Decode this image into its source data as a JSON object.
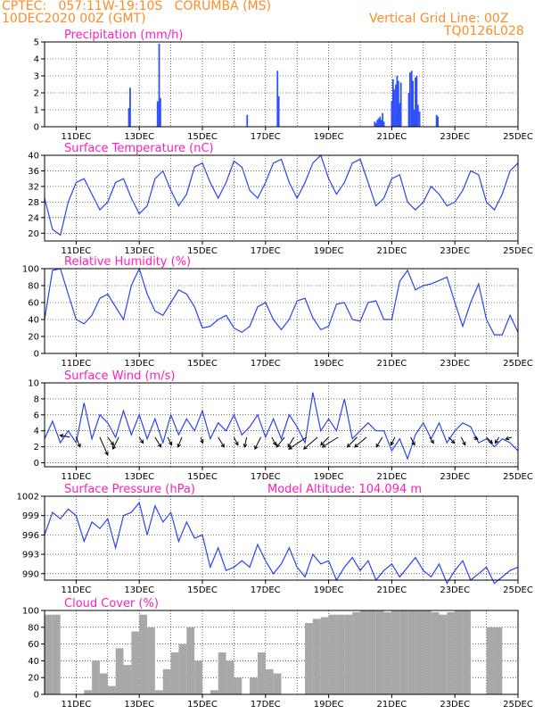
{
  "header": {
    "line1": "CPTEC:   057:11W-19:10S   CORUMBA (MS)",
    "line2_left": "10DEC2020 00Z (GMT)",
    "line2_right": "Vertical Grid Line: 00Z",
    "line3_right": "TQ0126L028"
  },
  "x_axis": {
    "tick_labels": [
      "11DEC",
      "13DEC",
      "15DEC",
      "17DEC",
      "19DEC",
      "21DEC",
      "23DEC",
      "25DEC"
    ],
    "tick_days": [
      1,
      3,
      5,
      7,
      9,
      11,
      13,
      15
    ],
    "range_days": [
      0,
      15
    ]
  },
  "colors": {
    "header": "#ff8c28",
    "title": "#ff1dbf",
    "line": "#2a44f0",
    "bar": "#3050f8",
    "cloud": "#a8a8a8",
    "grid": "#000000",
    "arrow": "#000000"
  },
  "chart_data": [
    {
      "type": "bar",
      "title": "Precipitation (mm/h)",
      "ylim": [
        0,
        5
      ],
      "yticks": [
        "0",
        "1",
        "2",
        "3",
        "4",
        "5"
      ],
      "x": [
        2.67,
        2.71,
        3.58,
        3.63,
        3.67,
        6.42,
        7.38,
        7.42,
        10.46,
        10.5,
        10.54,
        10.58,
        10.63,
        10.67,
        10.71,
        10.75,
        11.0,
        11.04,
        11.08,
        11.13,
        11.17,
        11.21,
        11.25,
        11.29,
        11.54,
        11.58,
        11.63,
        11.67,
        11.71,
        11.75,
        11.79,
        11.83,
        11.88,
        12.42,
        12.46
      ],
      "values": [
        1.1,
        2.3,
        1.5,
        4.9,
        1.7,
        0.7,
        3.3,
        1.8,
        0.3,
        0.2,
        0.4,
        0.5,
        0.6,
        0.4,
        0.8,
        0.3,
        1.5,
        2.8,
        2.2,
        2.5,
        3.0,
        2.7,
        1.4,
        2.6,
        2.0,
        3.2,
        3.3,
        2.7,
        1.0,
        2.9,
        3.0,
        1.3,
        0.9,
        0.7,
        0.6
      ]
    },
    {
      "type": "line",
      "title": "Surface Temperature (nC)",
      "ylim": [
        18,
        40
      ],
      "yticks": [
        "20",
        "24",
        "28",
        "32",
        "36",
        "40"
      ],
      "x": [
        0,
        0.25,
        0.5,
        0.75,
        1.0,
        1.25,
        1.5,
        1.75,
        2.0,
        2.25,
        2.5,
        2.75,
        3.0,
        3.25,
        3.5,
        3.75,
        4.0,
        4.25,
        4.5,
        4.75,
        5.0,
        5.25,
        5.5,
        5.75,
        6.0,
        6.25,
        6.5,
        6.75,
        7.0,
        7.25,
        7.5,
        7.75,
        8.0,
        8.25,
        8.5,
        8.75,
        9.0,
        9.25,
        9.5,
        9.75,
        10.0,
        10.25,
        10.5,
        10.75,
        11.0,
        11.25,
        11.5,
        11.75,
        12.0,
        12.25,
        12.5,
        12.75,
        13.0,
        13.25,
        13.5,
        13.75,
        14.0,
        14.25,
        14.5,
        14.75,
        15.0
      ],
      "values": [
        29,
        21,
        19.5,
        28,
        33,
        34,
        30,
        26,
        28,
        33,
        34,
        29,
        25,
        27,
        34,
        36,
        31,
        27,
        30,
        37,
        38,
        33,
        29,
        33,
        38.5,
        37,
        31,
        29,
        33,
        38,
        39,
        33,
        29,
        33,
        38,
        40,
        34,
        30,
        33,
        38,
        39,
        33,
        27,
        29,
        34,
        35,
        28,
        26,
        28,
        32,
        30,
        27,
        28,
        31,
        36,
        35,
        28,
        26,
        30,
        36,
        38
      ]
    },
    {
      "type": "line",
      "title": "Relative Humidity (%)",
      "ylim": [
        0,
        100
      ],
      "yticks": [
        "0",
        "20",
        "40",
        "60",
        "80",
        "100"
      ],
      "x": [
        0,
        0.25,
        0.5,
        0.75,
        1.0,
        1.25,
        1.5,
        1.75,
        2.0,
        2.25,
        2.5,
        2.75,
        3.0,
        3.25,
        3.5,
        3.75,
        4.0,
        4.25,
        4.5,
        4.75,
        5.0,
        5.25,
        5.5,
        5.75,
        6.0,
        6.25,
        6.5,
        6.75,
        7.0,
        7.25,
        7.5,
        7.75,
        8.0,
        8.25,
        8.5,
        8.75,
        9.0,
        9.25,
        9.5,
        9.75,
        10.0,
        10.25,
        10.5,
        10.75,
        11.0,
        11.25,
        11.5,
        11.75,
        12.0,
        12.25,
        12.5,
        12.75,
        13.0,
        13.25,
        13.5,
        13.75,
        14.0,
        14.25,
        14.5,
        14.75,
        15.0
      ],
      "values": [
        40,
        98,
        100,
        70,
        40,
        35,
        45,
        65,
        70,
        55,
        40,
        80,
        100,
        70,
        50,
        45,
        60,
        75,
        70,
        55,
        30,
        32,
        40,
        45,
        30,
        25,
        32,
        55,
        60,
        40,
        28,
        40,
        62,
        65,
        42,
        28,
        32,
        58,
        60,
        40,
        38,
        60,
        62,
        40,
        40,
        85,
        98,
        75,
        80,
        82,
        86,
        90,
        60,
        32,
        60,
        82,
        40,
        22,
        22,
        45,
        25
      ]
    },
    {
      "type": "line",
      "title": "Surface Wind (m/s)",
      "ylim": [
        -0.5,
        10
      ],
      "yticks": [
        "0",
        "2",
        "4",
        "6",
        "8",
        "10"
      ],
      "x": [
        0,
        0.25,
        0.5,
        0.75,
        1.0,
        1.25,
        1.5,
        1.75,
        2.0,
        2.25,
        2.5,
        2.75,
        3.0,
        3.25,
        3.5,
        3.75,
        4.0,
        4.25,
        4.5,
        4.75,
        5.0,
        5.25,
        5.5,
        5.75,
        6.0,
        6.25,
        6.5,
        6.75,
        7.0,
        7.25,
        7.5,
        7.75,
        8.0,
        8.25,
        8.5,
        8.75,
        9.0,
        9.25,
        9.5,
        9.75,
        10.0,
        10.25,
        10.5,
        10.75,
        11.0,
        11.25,
        11.5,
        11.75,
        12.0,
        12.25,
        12.5,
        12.75,
        13.0,
        13.25,
        13.5,
        13.75,
        14.0,
        14.25,
        14.5,
        14.75,
        15.0
      ],
      "values": [
        3.0,
        5.2,
        2.5,
        4.0,
        2.5,
        7.5,
        3.0,
        6.0,
        5.0,
        3.2,
        6.5,
        3.5,
        6.0,
        3.0,
        5.5,
        2.5,
        6.0,
        3.5,
        5.5,
        4.0,
        6.5,
        3.0,
        5.0,
        4.0,
        6.0,
        3.5,
        4.5,
        6.0,
        3.2,
        5.5,
        3.0,
        6.0,
        4.5,
        2.5,
        8.8,
        4.0,
        5.5,
        4.0,
        8.0,
        3.0,
        4.0,
        5.0,
        4.0,
        4.0,
        1.5,
        3.0,
        0.5,
        3.5,
        5.0,
        3.0,
        5.0,
        2.5,
        4.0,
        5.0,
        4.5,
        2.5,
        3.0,
        2.0,
        3.0,
        2.5,
        1.5
      ],
      "vectors": {
        "x": [
          0.8,
          1.0,
          1.75,
          2.0,
          2.35,
          3.0,
          3.5,
          3.9,
          4.35,
          4.95,
          5.5,
          6.0,
          6.4,
          6.85,
          7.2,
          7.6,
          7.9,
          8.3,
          8.65,
          9.0,
          9.3,
          9.9,
          10.2,
          10.7,
          11.1,
          11.6,
          12.2,
          12.8,
          13.2,
          13.6,
          14.0,
          14.4,
          14.8
        ],
        "u": [
          -0.5,
          0.2,
          0.4,
          0.3,
          -0.3,
          0.2,
          0.3,
          0.2,
          -0.2,
          0.1,
          0.3,
          0.2,
          -0.1,
          -0.3,
          0.2,
          -0.4,
          -0.3,
          -0.9,
          -0.7,
          -0.4,
          -0.8,
          -0.5,
          -0.6,
          -0.3,
          -0.2,
          0.2,
          0.2,
          0.3,
          0.2,
          0.2,
          0.3,
          -0.2,
          -0.3
        ],
        "v": [
          0.1,
          -0.5,
          -0.9,
          -0.4,
          -0.6,
          -0.3,
          -0.5,
          -0.4,
          -0.5,
          -0.3,
          -0.5,
          -0.4,
          -0.5,
          -0.6,
          -0.4,
          -0.5,
          -0.5,
          -0.6,
          -0.6,
          -0.4,
          -0.5,
          -0.5,
          -0.5,
          -0.5,
          -0.4,
          -0.4,
          -0.3,
          -0.3,
          -0.4,
          -0.1,
          -0.3,
          -0.3,
          -0.1
        ]
      }
    },
    {
      "type": "line",
      "title": "Surface Pressure (hPa)",
      "subtitle": "Model Altitude: 104.094 m",
      "ylim": [
        989,
        1002
      ],
      "yticks": [
        "990",
        "993",
        "996",
        "999",
        "1002"
      ],
      "x": [
        0,
        0.25,
        0.5,
        0.75,
        1.0,
        1.25,
        1.5,
        1.75,
        2.0,
        2.25,
        2.5,
        2.75,
        3.0,
        3.25,
        3.5,
        3.75,
        4.0,
        4.25,
        4.5,
        4.75,
        5.0,
        5.25,
        5.5,
        5.75,
        6.0,
        6.25,
        6.5,
        6.75,
        7.0,
        7.25,
        7.5,
        7.75,
        8.0,
        8.25,
        8.5,
        8.75,
        9.0,
        9.25,
        9.5,
        9.75,
        10.0,
        10.25,
        10.5,
        10.75,
        11.0,
        11.25,
        11.5,
        11.75,
        12.0,
        12.25,
        12.5,
        12.75,
        13.0,
        13.25,
        13.5,
        13.75,
        14.0,
        14.25,
        14.5,
        14.75,
        15.0
      ],
      "values": [
        996,
        999.5,
        998.5,
        1000,
        999,
        995,
        998,
        997,
        998.5,
        994,
        999,
        999.5,
        1001,
        996,
        1000.5,
        998,
        999.5,
        995,
        998,
        995.5,
        996,
        991,
        994,
        990.5,
        991,
        992,
        991,
        994.5,
        992,
        990,
        991.5,
        994,
        991,
        989.5,
        993,
        991.5,
        992,
        989,
        991,
        992.5,
        990.5,
        992,
        989,
        990.5,
        991.5,
        989.5,
        991,
        992.5,
        990.5,
        989.5,
        991.5,
        988.5,
        990.5,
        992,
        989,
        990,
        991,
        988.5,
        989.5,
        990.5,
        991
      ]
    },
    {
      "type": "bar",
      "title": "Cloud Cover (%)",
      "ylim": [
        0,
        100
      ],
      "yticks": [
        "0",
        "20",
        "40",
        "60",
        "80",
        "100"
      ],
      "x": [
        0.0,
        0.25,
        0.5,
        0.75,
        1.0,
        1.25,
        1.5,
        1.75,
        2.0,
        2.25,
        2.5,
        2.75,
        3.0,
        3.25,
        3.5,
        3.75,
        4.0,
        4.25,
        4.5,
        4.75,
        5.0,
        5.25,
        5.5,
        5.75,
        6.0,
        6.25,
        6.5,
        6.75,
        7.0,
        7.25,
        7.5,
        7.75,
        8.0,
        8.25,
        8.5,
        8.75,
        9.0,
        9.25,
        9.5,
        9.75,
        10.0,
        10.25,
        10.5,
        10.75,
        11.0,
        11.25,
        11.5,
        11.75,
        12.0,
        12.25,
        12.5,
        12.75,
        13.0,
        13.25,
        13.5,
        13.75,
        14.0,
        14.25,
        14.5,
        14.75
      ],
      "values": [
        95,
        95,
        0,
        0,
        0,
        5,
        40,
        25,
        10,
        55,
        35,
        75,
        95,
        80,
        5,
        30,
        50,
        60,
        80,
        40,
        0,
        5,
        50,
        40,
        20,
        0,
        20,
        50,
        30,
        25,
        0,
        0,
        0,
        85,
        90,
        92,
        95,
        95,
        95,
        98,
        100,
        100,
        100,
        98,
        100,
        100,
        100,
        100,
        100,
        98,
        95,
        98,
        100,
        100,
        0,
        0,
        80,
        80,
        0,
        0
      ]
    }
  ]
}
